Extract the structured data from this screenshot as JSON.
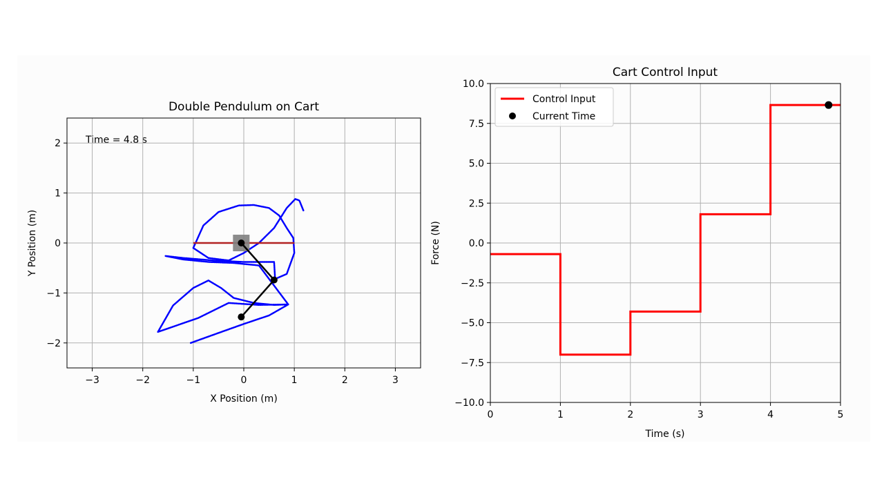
{
  "colors": {
    "trajectory": "#0000ff",
    "rail": "#b22222",
    "cart": "#808080",
    "pendulum": "#000000",
    "control": "#ff0000",
    "marker": "#000000",
    "grid": "#b0b0b0"
  },
  "chart_data": [
    {
      "type": "scatter",
      "title": "Double Pendulum on Cart",
      "xlabel": "X Position (m)",
      "ylabel": "Y Position (m)",
      "xlim": [
        -3.5,
        3.5
      ],
      "ylim": [
        -2.5,
        2.5
      ],
      "xticks": [
        -3,
        -2,
        -1,
        0,
        1,
        2,
        3
      ],
      "xtick_labels": [
        "−3",
        "−2",
        "−1",
        "0",
        "1",
        "2",
        "3"
      ],
      "yticks": [
        -2,
        -1,
        0,
        1,
        2
      ],
      "ytick_labels": [
        "−2",
        "−1",
        "0",
        "1",
        "2"
      ],
      "grid": true,
      "annotation": "Time = 4.8 s",
      "rail": {
        "x": [
          -1.0,
          1.0
        ],
        "y": 0.0
      },
      "cart": {
        "x": -0.05,
        "y": 0.0
      },
      "pendulum": {
        "pivot": [
          -0.05,
          0.0
        ],
        "joint": [
          0.6,
          -0.74
        ],
        "tip": [
          -0.05,
          -1.48
        ]
      },
      "trajectory": {
        "x": [
          -1.05,
          -0.5,
          0.0,
          0.5,
          0.88,
          0.3,
          -0.3,
          -0.9,
          -1.7,
          -1.4,
          -1.0,
          -0.7,
          -0.45,
          -0.2,
          0.2,
          0.6,
          0.88,
          0.3,
          -0.2,
          -0.7,
          -1.2,
          -1.55,
          -1.2,
          -0.6,
          0.0,
          0.6,
          0.62,
          0.85,
          1.0,
          0.98,
          0.85,
          0.7,
          0.5,
          0.2,
          -0.1,
          -0.5,
          -0.8,
          -1.0,
          -0.7,
          -0.3,
          0.0,
          0.3,
          0.6,
          0.85,
          1.02,
          1.1,
          1.18
        ],
        "y": [
          -2.0,
          -1.8,
          -1.62,
          -1.45,
          -1.23,
          -1.24,
          -1.2,
          -1.5,
          -1.78,
          -1.25,
          -0.9,
          -0.75,
          -0.9,
          -1.1,
          -1.2,
          -1.24,
          -1.23,
          -0.45,
          -0.4,
          -0.38,
          -0.33,
          -0.26,
          -0.3,
          -0.35,
          -0.38,
          -0.38,
          -0.72,
          -0.62,
          -0.2,
          0.1,
          0.3,
          0.55,
          0.7,
          0.76,
          0.75,
          0.62,
          0.35,
          -0.1,
          -0.3,
          -0.35,
          -0.2,
          0.0,
          0.3,
          0.7,
          0.88,
          0.85,
          0.65
        ]
      }
    },
    {
      "type": "line",
      "title": "Cart Control Input",
      "xlabel": "Time (s)",
      "ylabel": "Force (N)",
      "xlim": [
        0,
        5
      ],
      "ylim": [
        -10,
        10
      ],
      "xticks": [
        0,
        1,
        2,
        3,
        4,
        5
      ],
      "xtick_labels": [
        "0",
        "1",
        "2",
        "3",
        "4",
        "5"
      ],
      "yticks": [
        10,
        7.5,
        5,
        2.5,
        0,
        -2.5,
        -5,
        -7.5,
        -10
      ],
      "ytick_labels": [
        "10.0",
        "7.5",
        "5.0",
        "2.5",
        "0.0",
        "−2.5",
        "−5.0",
        "−7.5",
        "−10.0"
      ],
      "grid": true,
      "legend_position": "top-left",
      "series": [
        {
          "name": "Control Input",
          "step_x": [
            0,
            1,
            2,
            3,
            4,
            5
          ],
          "values": [
            -0.7,
            -7.0,
            -4.3,
            1.8,
            8.65
          ]
        },
        {
          "name": "Current Time",
          "x": [
            4.83
          ],
          "y": [
            8.65
          ]
        }
      ]
    }
  ]
}
